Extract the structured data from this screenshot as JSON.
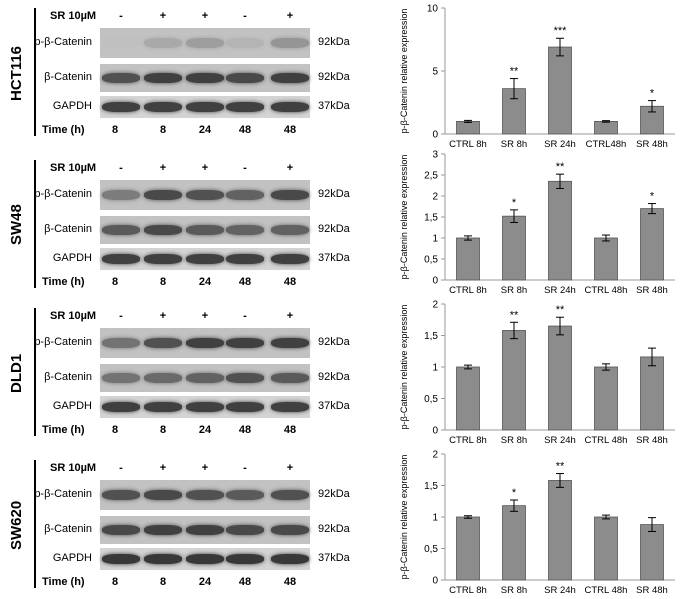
{
  "blots": [
    {
      "cell_line": "HCT116",
      "treatment_label": "SR 10µM",
      "signs": [
        "-",
        "+",
        "+",
        "-",
        "+"
      ],
      "rows": [
        {
          "label": "p-β-Catenin",
          "kda": "92kDa",
          "intensity": [
            0.05,
            0.18,
            0.25,
            0.12,
            0.3
          ]
        },
        {
          "label": "β-Catenin",
          "kda": "92kDa",
          "intensity": [
            0.7,
            0.8,
            0.8,
            0.75,
            0.8
          ]
        },
        {
          "label": "GAPDH",
          "kda": "37kDa",
          "intensity": [
            0.8,
            0.8,
            0.8,
            0.8,
            0.8
          ]
        }
      ],
      "time_label": "Time (h)",
      "times": [
        "8",
        "8",
        "24",
        "48",
        "48"
      ]
    },
    {
      "cell_line": "SW48",
      "treatment_label": "SR 10µM",
      "signs": [
        "-",
        "+",
        "+",
        "-",
        "+"
      ],
      "rows": [
        {
          "label": "p-β-Catenin",
          "kda": "92kDa",
          "intensity": [
            0.45,
            0.75,
            0.7,
            0.6,
            0.75
          ]
        },
        {
          "label": "β-Catenin",
          "kda": "92kDa",
          "intensity": [
            0.65,
            0.75,
            0.65,
            0.6,
            0.6
          ]
        },
        {
          "label": "GAPDH",
          "kda": "37kDa",
          "intensity": [
            0.8,
            0.8,
            0.8,
            0.8,
            0.8
          ]
        }
      ],
      "time_label": "Time (h)",
      "times": [
        "8",
        "8",
        "24",
        "48",
        "48"
      ]
    },
    {
      "cell_line": "DLD1",
      "treatment_label": "SR 10µM",
      "signs": [
        "-",
        "+",
        "+",
        "-",
        "+"
      ],
      "rows": [
        {
          "label": "p-β-Catenin",
          "kda": "92kDa",
          "intensity": [
            0.5,
            0.7,
            0.8,
            0.8,
            0.8
          ]
        },
        {
          "label": "β-Catenin",
          "kda": "92kDa",
          "intensity": [
            0.5,
            0.55,
            0.6,
            0.7,
            0.65
          ]
        },
        {
          "label": "GAPDH",
          "kda": "37kDa",
          "intensity": [
            0.8,
            0.8,
            0.8,
            0.8,
            0.8
          ]
        }
      ],
      "time_label": "Time (h)",
      "times": [
        "8",
        "8",
        "24",
        "48",
        "48"
      ]
    },
    {
      "cell_line": "SW620",
      "treatment_label": "SR 10µM",
      "signs": [
        "-",
        "+",
        "+",
        "-",
        "+"
      ],
      "rows": [
        {
          "label": "p-β-Catenin",
          "kda": "92kDa",
          "intensity": [
            0.7,
            0.75,
            0.7,
            0.65,
            0.7
          ]
        },
        {
          "label": "β-Catenin",
          "kda": "92kDa",
          "intensity": [
            0.75,
            0.8,
            0.8,
            0.75,
            0.75
          ]
        },
        {
          "label": "GAPDH",
          "kda": "37kDa",
          "intensity": [
            0.85,
            0.85,
            0.85,
            0.85,
            0.85
          ]
        }
      ],
      "time_label": "Time (h)",
      "times": [
        "8",
        "8",
        "24",
        "48",
        "48"
      ]
    }
  ],
  "colors": {
    "bar": "#8c8c8c",
    "bar_stroke": "#555555",
    "axis": "#999999"
  },
  "chart_data": [
    {
      "type": "bar",
      "ylabel": "p-β-Catenin relative expression",
      "categories": [
        "CTRL 8h",
        "SR 8h",
        "SR 24h",
        "CTRL48h",
        "SR 48h"
      ],
      "values": [
        1.0,
        3.6,
        6.9,
        1.0,
        2.2
      ],
      "errors": [
        0.08,
        0.8,
        0.7,
        0.06,
        0.45
      ],
      "annotations": [
        "",
        "**",
        "***",
        "",
        "*"
      ],
      "ylim": [
        0,
        10
      ],
      "yticks": [
        "0",
        "5",
        "10"
      ],
      "ytick_values": [
        0,
        5,
        10
      ]
    },
    {
      "type": "bar",
      "ylabel": "p-β-Catenin relative expression",
      "categories": [
        "CTRL 8h",
        "SR 8h",
        "SR 24h",
        "CTRL 48h",
        "SR 48h"
      ],
      "values": [
        1.0,
        1.52,
        2.35,
        1.0,
        1.7
      ],
      "errors": [
        0.05,
        0.15,
        0.17,
        0.07,
        0.12
      ],
      "annotations": [
        "",
        "*",
        "**",
        "",
        "*"
      ],
      "ylim": [
        0,
        3
      ],
      "yticks": [
        "0",
        "0,5",
        "1",
        "1,5",
        "2",
        "2,5",
        "3"
      ],
      "ytick_values": [
        0,
        0.5,
        1,
        1.5,
        2,
        2.5,
        3
      ]
    },
    {
      "type": "bar",
      "ylabel": "p-β-Catenin relative expression",
      "categories": [
        "CTRL 8h",
        "SR 8h",
        "SR 24h",
        "CTRL 48h",
        "SR 48h"
      ],
      "values": [
        1.0,
        1.58,
        1.65,
        1.0,
        1.16
      ],
      "errors": [
        0.03,
        0.13,
        0.14,
        0.05,
        0.14
      ],
      "annotations": [
        "",
        "**",
        "**",
        "",
        ""
      ],
      "ylim": [
        0,
        2
      ],
      "yticks": [
        "0",
        "0,5",
        "1",
        "1,5",
        "2"
      ],
      "ytick_values": [
        0,
        0.5,
        1,
        1.5,
        2
      ]
    },
    {
      "type": "bar",
      "ylabel": "p-β-Catenin relative expression",
      "categories": [
        "CTRL 8h",
        "SR 8h",
        "SR 24h",
        "CTRL 48h",
        "SR 48h"
      ],
      "values": [
        1.0,
        1.18,
        1.58,
        1.0,
        0.88
      ],
      "errors": [
        0.02,
        0.09,
        0.11,
        0.03,
        0.11
      ],
      "annotations": [
        "",
        "*",
        "**",
        "",
        ""
      ],
      "ylim": [
        0,
        2
      ],
      "yticks": [
        "0",
        "0,5",
        "1",
        "1,5",
        "2"
      ],
      "ytick_values": [
        0,
        0.5,
        1,
        1.5,
        2
      ]
    }
  ]
}
